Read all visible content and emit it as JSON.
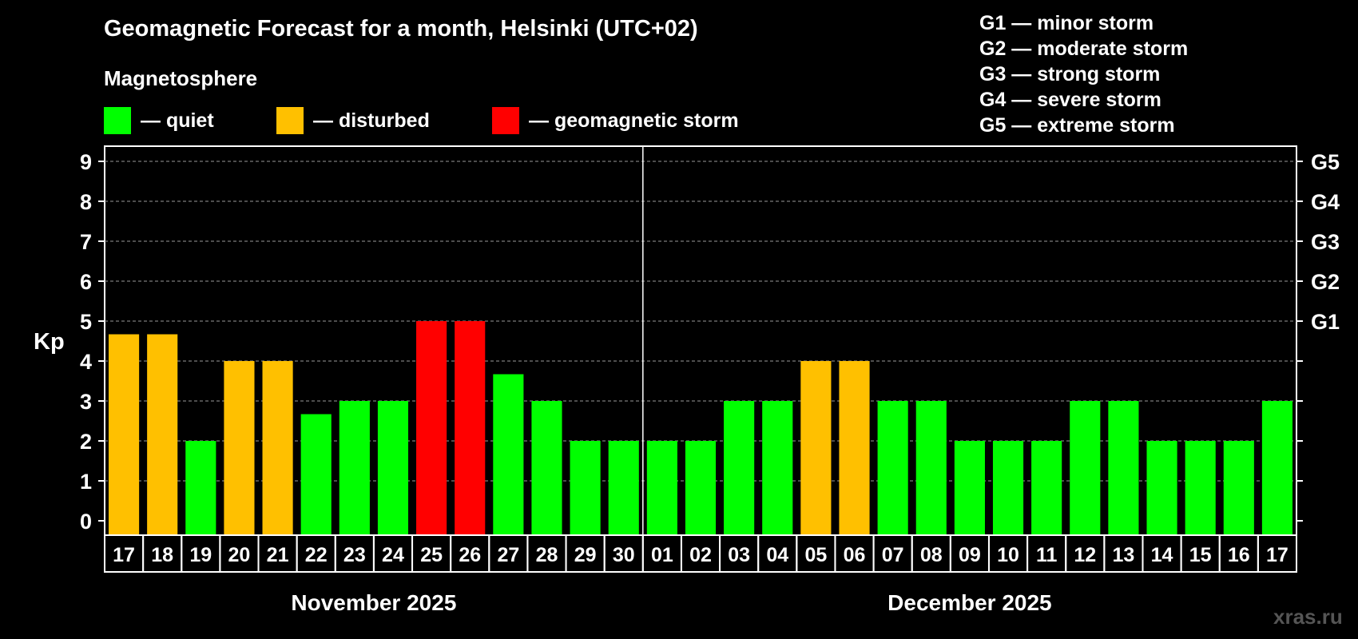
{
  "title": "Geomagnetic Forecast for a month, Helsinki (UTC+02)",
  "legend": {
    "heading": "Magnetosphere",
    "items": [
      {
        "label": "— quiet",
        "color": "#00ff00"
      },
      {
        "label": "— disturbed",
        "color": "#ffc000"
      },
      {
        "label": "— geomagnetic storm",
        "color": "#ff0000"
      }
    ]
  },
  "storm_scale": [
    "G1 — minor storm",
    "G2 — moderate storm",
    "G3 — strong storm",
    "G4 — severe storm",
    "G5 — extreme storm"
  ],
  "watermark": "xras.ru",
  "chart_data": {
    "type": "bar",
    "ylabel": "Kp",
    "ylim": [
      0,
      9
    ],
    "yticks": [
      0,
      1,
      2,
      3,
      4,
      5,
      6,
      7,
      8,
      9
    ],
    "right_axis_labels": [
      {
        "value": 5,
        "label": "G1"
      },
      {
        "value": 6,
        "label": "G2"
      },
      {
        "value": 7,
        "label": "G3"
      },
      {
        "value": 8,
        "label": "G4"
      },
      {
        "value": 9,
        "label": "G5"
      }
    ],
    "months": [
      {
        "label": "November 2025",
        "first_index": 0,
        "last_index": 13
      },
      {
        "label": "December 2025",
        "first_index": 14,
        "last_index": 30
      }
    ],
    "categories": [
      "17",
      "18",
      "19",
      "20",
      "21",
      "22",
      "23",
      "24",
      "25",
      "26",
      "27",
      "28",
      "29",
      "30",
      "01",
      "02",
      "03",
      "04",
      "05",
      "06",
      "07",
      "08",
      "09",
      "10",
      "11",
      "12",
      "13",
      "14",
      "15",
      "16",
      "17"
    ],
    "values": [
      4.67,
      4.67,
      2,
      4,
      4,
      2.67,
      3,
      3,
      5,
      5,
      3.67,
      3,
      2,
      2,
      2,
      2,
      3,
      3,
      4,
      4,
      3,
      3,
      2,
      2,
      2,
      3,
      3,
      2,
      2,
      2,
      3
    ],
    "status": [
      "disturbed",
      "disturbed",
      "quiet",
      "disturbed",
      "disturbed",
      "quiet",
      "quiet",
      "quiet",
      "storm",
      "storm",
      "quiet",
      "quiet",
      "quiet",
      "quiet",
      "quiet",
      "quiet",
      "quiet",
      "quiet",
      "disturbed",
      "disturbed",
      "quiet",
      "quiet",
      "quiet",
      "quiet",
      "quiet",
      "quiet",
      "quiet",
      "quiet",
      "quiet",
      "quiet",
      "quiet"
    ],
    "status_colors": {
      "quiet": "#00ff00",
      "disturbed": "#ffc000",
      "storm": "#ff0000"
    }
  }
}
